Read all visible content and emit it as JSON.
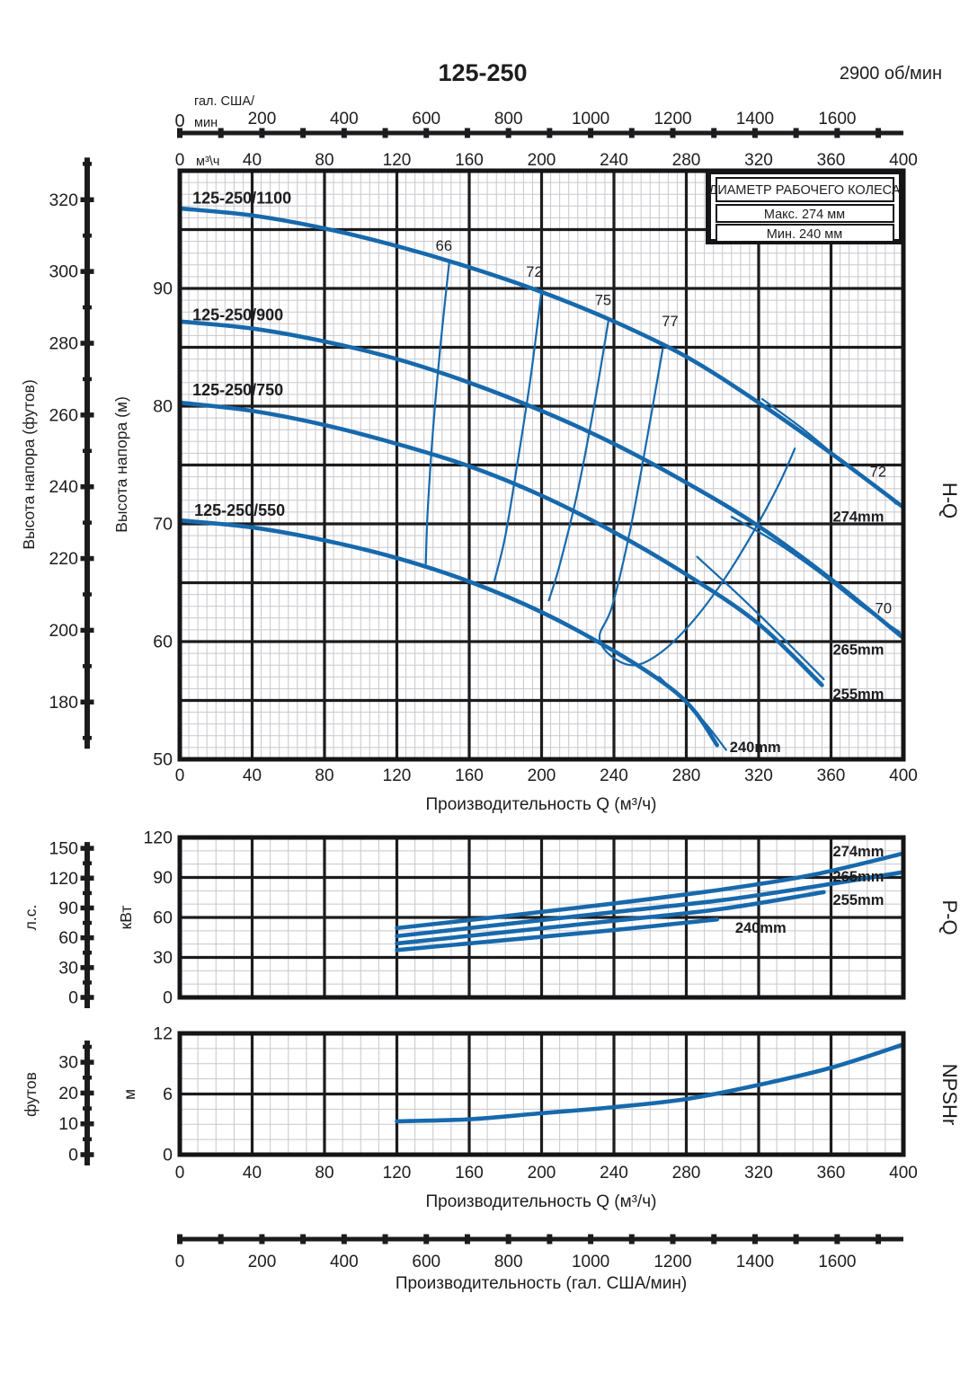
{
  "header": {
    "title": "125-250",
    "speed": "2900 об/мин"
  },
  "colors": {
    "curve": "#1769ac",
    "grid_major": "#1c1c1e",
    "grid_minor": "#c7c7cd",
    "text": "#1d1d1f",
    "border": "#151517",
    "background": "#ffffff"
  },
  "legend": {
    "title": "ДИАМЕТР РАБОЧЕГО КОЛЕСА",
    "rows": [
      "Макс. 274 мм",
      "Мин. 240 мм"
    ]
  },
  "flow_axes": {
    "gal_top": {
      "zero": "0",
      "unit_line1": "гал. США/",
      "unit_line2": "мин",
      "labels": [
        200,
        400,
        600,
        800,
        1000,
        1200,
        1400,
        1600
      ],
      "tick_step": 100,
      "max_tick": 1700,
      "gal_per_m3h": 4.4029
    },
    "m3h_top": {
      "zero": "0",
      "unit": "м³\\ч",
      "labels": [
        40,
        80,
        120,
        160,
        200,
        240,
        280,
        320,
        360,
        400
      ]
    },
    "hq_bottom": {
      "labels": [
        0,
        40,
        80,
        120,
        160,
        200,
        240,
        280,
        320,
        360,
        400
      ],
      "title": "Производительность Q (м³/ч)"
    },
    "np_bottom": {
      "labels": [
        0,
        40,
        80,
        120,
        160,
        200,
        240,
        280,
        320,
        360,
        400
      ],
      "title": "Производительность Q (м³/ч)"
    },
    "gal_bottom": {
      "labels": [
        0,
        200,
        400,
        600,
        800,
        1000,
        1200,
        1400,
        1600
      ],
      "tick_step": 100,
      "max_tick": 1700,
      "title": "Производительность (гал. США/мин)"
    }
  },
  "chart_data": [
    {
      "id": "hq",
      "type": "line",
      "side_label": "H-Q",
      "xlabel": "Производительность Q (м³/ч)",
      "ylabel": "Высота напора (м)",
      "ylabel2": "Высота напора (футов)",
      "xlim": [
        0,
        400
      ],
      "ylim": [
        50,
        100
      ],
      "x_major": 40,
      "x_minor": 5,
      "y_major": 5,
      "y_minor": 1,
      "y_tick_labels": [
        90,
        80,
        70,
        60,
        50
      ],
      "feet_ruler": {
        "title": "Высота напора (футов)",
        "labels": [
          320,
          300,
          280,
          260,
          240,
          220,
          200,
          180
        ],
        "major": 20,
        "minor": 10,
        "min": 170,
        "max": 330
      },
      "series": [
        {
          "name": "125-250/1100",
          "label_at": [
            7,
            96.9
          ],
          "points": [
            [
              0,
              96.8
            ],
            [
              40,
              96.2
            ],
            [
              80,
              95.1
            ],
            [
              120,
              93.6
            ],
            [
              160,
              91.8
            ],
            [
              200,
              89.7
            ],
            [
              240,
              87.2
            ],
            [
              280,
              84.2
            ],
            [
              320,
              80.3
            ],
            [
              360,
              76.0
            ],
            [
              400,
              71.4
            ]
          ]
        },
        {
          "name": "125-250/900",
          "label_at": [
            7,
            87.0
          ],
          "points": [
            [
              0,
              87.2
            ],
            [
              40,
              86.6
            ],
            [
              80,
              85.5
            ],
            [
              120,
              84.0
            ],
            [
              160,
              82.0
            ],
            [
              200,
              79.6
            ],
            [
              240,
              76.8
            ],
            [
              280,
              73.5
            ],
            [
              320,
              69.8
            ],
            [
              360,
              65.3
            ],
            [
              400,
              60.3
            ]
          ]
        },
        {
          "name": "125-250/750",
          "label_at": [
            7,
            80.6
          ],
          "points": [
            [
              0,
              80.3
            ],
            [
              40,
              79.6
            ],
            [
              80,
              78.4
            ],
            [
              120,
              76.8
            ],
            [
              160,
              74.9
            ],
            [
              200,
              72.4
            ],
            [
              240,
              69.3
            ],
            [
              280,
              65.7
            ],
            [
              320,
              61.5
            ],
            [
              355,
              56.3
            ]
          ]
        },
        {
          "name": "125-250/550",
          "label_at": [
            8,
            70.4
          ],
          "points": [
            [
              0,
              70.3
            ],
            [
              40,
              69.7
            ],
            [
              80,
              68.6
            ],
            [
              120,
              67.1
            ],
            [
              160,
              65.1
            ],
            [
              200,
              62.5
            ],
            [
              240,
              59.2
            ],
            [
              270,
              56.2
            ],
            [
              285,
              54.0
            ],
            [
              297,
              51.2
            ]
          ]
        }
      ],
      "efficiency": [
        {
          "label": "66",
          "label_at": [
            146,
            93.2
          ],
          "points": [
            [
              149,
              92.3
            ],
            [
              144,
              85
            ],
            [
              140,
              78
            ],
            [
              137,
              71
            ],
            [
              136,
              66.6
            ]
          ]
        },
        {
          "label": "72",
          "label_at": [
            196,
            91.0
          ],
          "points": [
            [
              200,
              89.8
            ],
            [
              194,
              82.5
            ],
            [
              187,
              75.5
            ],
            [
              180,
              69
            ],
            [
              174,
              65.2
            ]
          ]
        },
        {
          "label": "75",
          "label_at": [
            234,
            88.6
          ],
          "points": [
            [
              237,
              87.3
            ],
            [
              229,
              80
            ],
            [
              220,
              72.8
            ],
            [
              210,
              66.5
            ],
            [
              204,
              63.5
            ]
          ]
        },
        {
          "label": "77",
          "label_at": [
            271,
            86.8
          ],
          "points": [
            [
              267,
              84.9
            ],
            [
              258,
              77
            ],
            [
              249,
              69.5
            ],
            [
              239,
              63
            ],
            [
              232,
              60.4
            ],
            [
              239,
              58.7
            ],
            [
              252,
              58.0
            ],
            [
              267,
              59.2
            ],
            [
              284,
              61.8
            ],
            [
              301,
              65.3
            ],
            [
              317,
              69.3
            ],
            [
              331,
              73.3
            ],
            [
              340,
              76.4
            ]
          ]
        },
        {
          "label": "72",
          "label_at": [
            386,
            74.0
          ],
          "points": [
            [
              322,
              80.6
            ],
            [
              345,
              78.0
            ],
            [
              367,
              75.2
            ],
            [
              384,
              73.3
            ],
            [
              396,
              71.7
            ]
          ]
        },
        {
          "label": "70",
          "label_at": [
            389,
            62.4
          ],
          "points": [
            [
              305,
              70.6
            ],
            [
              330,
              68.4
            ],
            [
              355,
              65.7
            ],
            [
              378,
              62.9
            ],
            [
              398,
              60.8
            ]
          ]
        },
        {
          "label": null,
          "label_at": null,
          "points": [
            [
              286,
              67.2
            ],
            [
              310,
              63.8
            ],
            [
              334,
              60.2
            ],
            [
              356,
              56.8
            ]
          ]
        },
        {
          "label": null,
          "label_at": null,
          "points": [
            [
              265,
              57.0
            ],
            [
              288,
              53.5
            ],
            [
              302,
              50.8
            ]
          ]
        }
      ],
      "annotations": [
        {
          "text": "274mm",
          "at": [
            361,
            70.2
          ]
        },
        {
          "text": "265mm",
          "at": [
            361,
            58.9
          ]
        },
        {
          "text": "255mm",
          "at": [
            361,
            55.1
          ]
        },
        {
          "text": "240mm",
          "at": [
            304,
            50.6
          ]
        }
      ]
    },
    {
      "id": "pq",
      "type": "line",
      "side_label": "P-Q",
      "ylabel": "кВт",
      "xlim": [
        0,
        400
      ],
      "ylim": [
        0,
        120
      ],
      "x_major": 40,
      "x_minor": 10,
      "y_major": 30,
      "y_minor": 10,
      "y_tick_labels": [
        120,
        90,
        60,
        30,
        0
      ],
      "hp_ruler": {
        "title": "л.с.",
        "labels": [
          150,
          120,
          90,
          60,
          30,
          0
        ],
        "major": 30,
        "minor": 15,
        "min": 0,
        "max": 150
      },
      "series": [
        {
          "name": "274mm",
          "points": [
            [
              120,
              52.0
            ],
            [
              180,
              61.0
            ],
            [
              240,
              70.5
            ],
            [
              300,
              81.0
            ],
            [
              350,
              92.0
            ],
            [
              400,
              108.0
            ]
          ]
        },
        {
          "name": "265mm",
          "points": [
            [
              120,
              46.0
            ],
            [
              180,
              55.0
            ],
            [
              240,
              64.0
            ],
            [
              300,
              73.0
            ],
            [
              350,
              83.0
            ],
            [
              400,
              94.0
            ]
          ]
        },
        {
          "name": "255mm",
          "points": [
            [
              120,
              40.5
            ],
            [
              180,
              49.0
            ],
            [
              240,
              57.5
            ],
            [
              300,
              66.5
            ],
            [
              356,
              79.0
            ]
          ]
        },
        {
          "name": "240mm",
          "points": [
            [
              120,
              35.5
            ],
            [
              180,
              43.0
            ],
            [
              240,
              50.5
            ],
            [
              297,
              58.5
            ]
          ]
        }
      ],
      "annotations": [
        {
          "text": "274mm",
          "at": [
            361,
            106.0
          ]
        },
        {
          "text": "265mm",
          "at": [
            361,
            87.0
          ]
        },
        {
          "text": "255mm",
          "at": [
            361,
            69.5
          ]
        },
        {
          "text": "240mm",
          "at": [
            307,
            48.5
          ]
        }
      ]
    },
    {
      "id": "npshr",
      "type": "line",
      "side_label": "NPSHr",
      "ylabel": "м",
      "xlim": [
        0,
        400
      ],
      "ylim": [
        0,
        12
      ],
      "x_major": 40,
      "x_minor": 10,
      "y_major": 6,
      "y_minor": 1.5,
      "y_tick_labels": [
        12,
        6,
        0
      ],
      "ft_ruler": {
        "title": "футов",
        "labels": [
          30,
          20,
          10,
          0
        ],
        "major": 10,
        "minor": 5,
        "min": 0,
        "max": 35
      },
      "series": [
        {
          "name": "NPSHr",
          "points": [
            [
              120,
              3.3
            ],
            [
              160,
              3.5
            ],
            [
              200,
              4.1
            ],
            [
              240,
              4.7
            ],
            [
              280,
              5.5
            ],
            [
              320,
              6.9
            ],
            [
              360,
              8.6
            ],
            [
              400,
              10.9
            ]
          ]
        }
      ],
      "annotations": []
    }
  ]
}
